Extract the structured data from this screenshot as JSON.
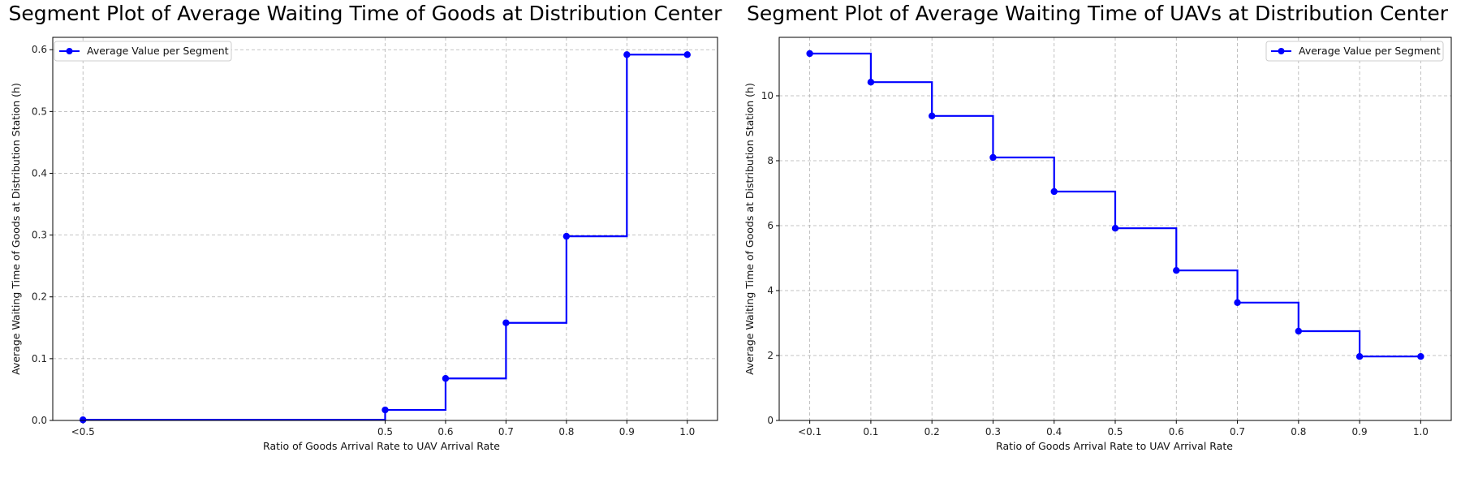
{
  "colors": {
    "line": "#0000ff",
    "grid": "#b0b0b0",
    "axis": "#000000"
  },
  "chart_data": [
    {
      "type": "line",
      "step": "post",
      "title": "Segment Plot of Average Waiting Time of Goods at Distribution Center",
      "xlabel": "Ratio of Goods Arrival Rate to UAV Arrival Rate",
      "ylabel": "Average Waiting Time of Goods at Distribution Station (h)",
      "x_positions": [
        0.0,
        0.5,
        0.6,
        0.7,
        0.8,
        0.9,
        1.0
      ],
      "xtick_labels": [
        "<0.5",
        "0.5",
        "0.6",
        "0.7",
        "0.8",
        "0.9",
        "1.0"
      ],
      "xlim": [
        -0.05,
        1.05
      ],
      "ylim": [
        0,
        0.62
      ],
      "yticks": [
        0.0,
        0.1,
        0.2,
        0.3,
        0.4,
        0.5,
        0.6
      ],
      "ytick_labels": [
        "0.0",
        "0.1",
        "0.2",
        "0.3",
        "0.4",
        "0.5",
        "0.6"
      ],
      "series": [
        {
          "name": "Average Value per Segment",
          "values": [
            0.001,
            0.017,
            0.068,
            0.158,
            0.298,
            0.592,
            0.592
          ]
        }
      ],
      "grid": true,
      "legend_position": "upper left"
    },
    {
      "type": "line",
      "step": "post",
      "title": "Segment Plot of Average Waiting Time of UAVs at Distribution Center",
      "xlabel": "Ratio of Goods Arrival Rate to UAV Arrival Rate",
      "ylabel": "Average Waiting Time of Goods at Distribution Station (h)",
      "x_positions": [
        0.0,
        0.1,
        0.2,
        0.3,
        0.4,
        0.5,
        0.6,
        0.7,
        0.8,
        0.9,
        1.0
      ],
      "xtick_labels": [
        "<0.1",
        "0.1",
        "0.2",
        "0.3",
        "0.4",
        "0.5",
        "0.6",
        "0.7",
        "0.8",
        "0.9",
        "1.0"
      ],
      "xlim": [
        -0.05,
        1.05
      ],
      "ylim": [
        0,
        11.8
      ],
      "yticks": [
        0,
        2,
        4,
        6,
        8,
        10
      ],
      "ytick_labels": [
        "0",
        "2",
        "4",
        "6",
        "8",
        "10"
      ],
      "series": [
        {
          "name": "Average Value per Segment",
          "values": [
            11.3,
            10.42,
            9.38,
            8.1,
            7.05,
            5.92,
            4.62,
            3.63,
            2.75,
            1.97,
            1.97
          ]
        }
      ],
      "grid": true,
      "legend_position": "upper right"
    }
  ]
}
